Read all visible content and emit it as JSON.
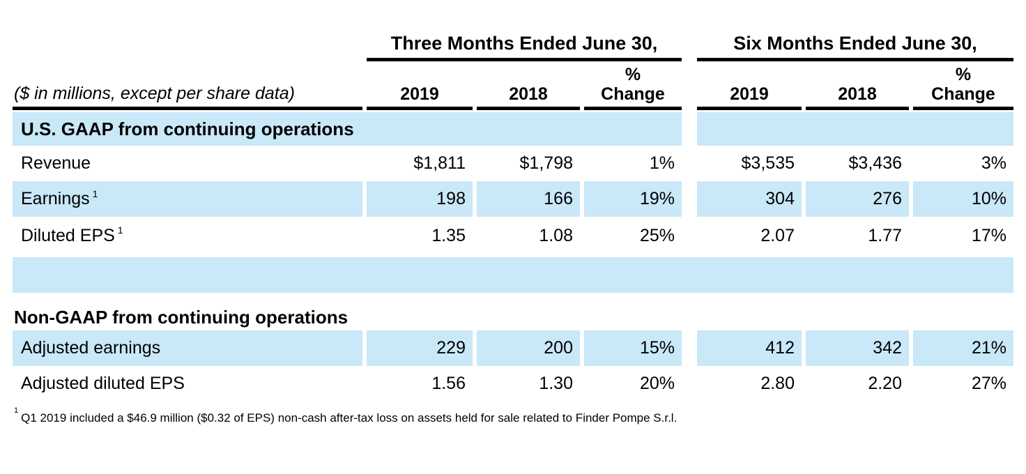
{
  "colors": {
    "row_shade": "#c9e8f8",
    "rule": "#000000",
    "text": "#000000"
  },
  "table": {
    "units_note": "($ in millions, except per share data)",
    "groups": [
      {
        "label": "Three Months Ended June 30,",
        "years": [
          "2019",
          "2018"
        ]
      },
      {
        "label": "Six Months Ended June 30,",
        "years": [
          "2019",
          "2018"
        ]
      }
    ],
    "pct_header": {
      "line1": "%",
      "line2": "Change"
    },
    "sections": [
      {
        "title": "U.S. GAAP from continuing operations",
        "rows": [
          {
            "label": "Revenue",
            "sup": "",
            "values": [
              "$1,811",
              "$1,798",
              "1%",
              "$3,535",
              "$3,436",
              "3%"
            ]
          },
          {
            "label": "Earnings",
            "sup": "1",
            "values": [
              "198",
              "166",
              "19%",
              "304",
              "276",
              "10%"
            ]
          },
          {
            "label": "Diluted EPS",
            "sup": "1",
            "values": [
              "1.35",
              "1.08",
              "25%",
              "2.07",
              "1.77",
              "17%"
            ]
          }
        ]
      },
      {
        "title": "Non-GAAP from continuing operations",
        "rows": [
          {
            "label": "Adjusted earnings",
            "sup": "",
            "values": [
              "229",
              "200",
              "15%",
              "412",
              "342",
              "21%"
            ]
          },
          {
            "label": "Adjusted diluted EPS",
            "sup": "",
            "values": [
              "1.56",
              "1.30",
              "20%",
              "2.80",
              "2.20",
              "27%"
            ]
          }
        ]
      }
    ],
    "footnote": {
      "marker": "1",
      "text": "Q1 2019 included a $46.9 million ($0.32 of EPS) non-cash after-tax loss on assets held for sale related to Finder Pompe S.r.l."
    }
  }
}
